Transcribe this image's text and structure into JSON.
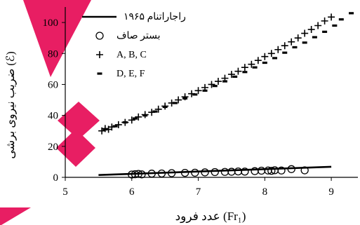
{
  "colors": {
    "accent": "#e81e63",
    "ink": "#000000"
  },
  "chart_data": {
    "type": "scatter",
    "xlabel": "عدد فرود (Fr₁)",
    "ylabel": "ضریب نیروی برشی (ℰ)",
    "xlim": [
      5,
      9.4
    ],
    "ylim": [
      0,
      110
    ],
    "xticks": [
      5,
      6,
      7,
      8,
      9
    ],
    "xtick_labels": [
      "5",
      "6",
      "7",
      "8",
      "9"
    ],
    "yticks": [
      0,
      20,
      40,
      60,
      80,
      100
    ],
    "ytick_labels": [
      "0",
      "20",
      "40",
      "60",
      "80",
      "100"
    ],
    "grid": false,
    "legend_position": "top-left",
    "series": [
      {
        "name": "راجاراتنام ۱۹۶۵",
        "marker": "line",
        "x": [
          5.5,
          9.0
        ],
        "y": [
          1.5,
          6.8
        ]
      },
      {
        "name": "بستر صاف",
        "marker": "circle",
        "x": [
          6.0,
          6.05,
          6.1,
          6.15,
          6.3,
          6.45,
          6.6,
          6.8,
          6.95,
          7.1,
          7.25,
          7.4,
          7.5,
          7.6,
          7.7,
          7.85,
          7.95,
          8.05,
          8.1,
          8.15,
          8.25,
          8.4,
          8.6
        ],
        "y": [
          1.8,
          2.0,
          2.2,
          1.9,
          2.4,
          2.5,
          2.7,
          2.9,
          3.0,
          3.2,
          3.4,
          3.5,
          3.6,
          3.8,
          3.7,
          4.0,
          4.3,
          4.4,
          4.2,
          4.6,
          4.4,
          5.3,
          4.5
        ]
      },
      {
        "name": "A, B, C",
        "marker": "plus",
        "x": [
          5.55,
          5.6,
          5.65,
          5.7,
          5.8,
          5.9,
          6.0,
          6.1,
          6.2,
          6.3,
          6.4,
          6.5,
          6.6,
          6.7,
          6.8,
          6.9,
          7.0,
          7.1,
          7.2,
          7.3,
          7.4,
          7.5,
          7.6,
          7.7,
          7.8,
          7.9,
          8.0,
          8.1,
          8.2,
          8.3,
          8.4,
          8.5,
          8.6,
          8.7,
          8.8,
          8.9,
          9.0
        ],
        "y": [
          30.0,
          31.5,
          31.0,
          32.5,
          34.0,
          35.5,
          37.0,
          39.0,
          40.5,
          42.0,
          44.0,
          46.0,
          48.0,
          50.0,
          52.0,
          54.0,
          56.0,
          58.0,
          60.0,
          62.0,
          64.0,
          66.5,
          68.5,
          71.0,
          73.0,
          75.5,
          78.0,
          80.0,
          82.5,
          85.0,
          87.5,
          90.0,
          93.0,
          95.5,
          98.0,
          101.0,
          103.5
        ]
      },
      {
        "name": "D, E, F",
        "marker": "dash",
        "x": [
          5.6,
          5.75,
          5.9,
          6.05,
          6.2,
          6.35,
          6.5,
          6.65,
          6.8,
          6.95,
          7.1,
          7.25,
          7.4,
          7.55,
          7.7,
          7.85,
          8.0,
          8.15,
          8.3,
          8.45,
          8.6,
          8.75,
          8.9,
          9.05,
          9.15,
          9.3
        ],
        "y": [
          31.0,
          33.0,
          35.5,
          38.0,
          40.0,
          42.5,
          45.5,
          48.0,
          51.0,
          53.5,
          56.0,
          59.0,
          62.0,
          65.0,
          68.0,
          71.0,
          74.0,
          77.0,
          80.5,
          84.0,
          87.0,
          90.5,
          94.0,
          98.0,
          102.0,
          106.0
        ]
      }
    ]
  }
}
